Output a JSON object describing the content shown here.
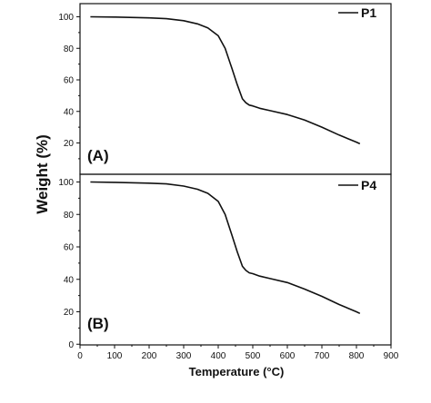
{
  "chart_data": {
    "type": "line",
    "xlabel": "Temperature (°C)",
    "ylabel": "Weight (%)",
    "xlim": [
      0,
      900
    ],
    "x_ticks": [
      0,
      100,
      200,
      300,
      400,
      500,
      600,
      700,
      800,
      900
    ],
    "grid": false,
    "panels": [
      {
        "label": "(A)",
        "ylim": [
          10,
          105
        ],
        "y_ticks": [
          20,
          40,
          60,
          80,
          100
        ],
        "legend_position": "top-right",
        "series": [
          {
            "name": "P1",
            "x": [
              30,
              100,
              200,
              250,
              300,
              340,
              370,
              400,
              420,
              440,
              455,
              470,
              480,
              490,
              500,
              520,
              550,
              600,
              650,
              700,
              750,
              800,
              810
            ],
            "y": [
              100,
              99.8,
              99.3,
              98.8,
              97.5,
              95.5,
              93,
              88,
              80,
              67,
              57,
              48,
              45.5,
              44,
              43.5,
              42,
              40.5,
              38,
              34.5,
              30,
              25,
              20.5,
              19.5
            ]
          }
        ]
      },
      {
        "label": "(B)",
        "ylim": [
          0,
          105
        ],
        "y_ticks": [
          0,
          20,
          40,
          60,
          80,
          100
        ],
        "legend_position": "top-right",
        "series": [
          {
            "name": "P4",
            "x": [
              30,
              100,
              200,
              250,
              300,
              340,
              370,
              400,
              420,
              440,
              455,
              470,
              480,
              490,
              500,
              520,
              550,
              600,
              650,
              700,
              750,
              800,
              810
            ],
            "y": [
              100,
              99.8,
              99.3,
              98.8,
              97.5,
              95.5,
              93,
              88,
              80,
              67,
              57,
              48,
              45.5,
              44,
              43.5,
              42,
              40.5,
              38,
              34,
              29.5,
              24.5,
              20,
              19
            ]
          }
        ]
      }
    ]
  }
}
